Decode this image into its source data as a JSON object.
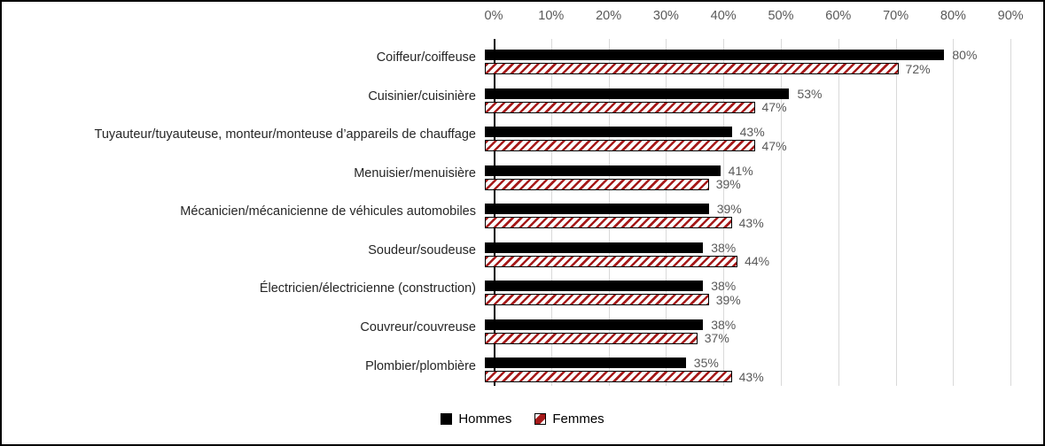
{
  "chart_data": {
    "type": "bar",
    "orientation": "horizontal",
    "categories": [
      "Coiffeur/coiffeuse",
      "Cuisinier/cuisinière",
      "Tuyauteur/tuyauteuse, monteur/monteuse d’appareils de chauffage",
      "Menuisier/menuisière",
      "Mécanicien/mécanicienne de véhicules automobiles",
      "Soudeur/soudeuse",
      "Électricien/électricienne (construction)",
      "Couvreur/couvreuse",
      "Plombier/plombière"
    ],
    "series": [
      {
        "name": "Hommes",
        "values": [
          80,
          53,
          43,
          41,
          39,
          38,
          38,
          38,
          35
        ]
      },
      {
        "name": "Femmes",
        "values": [
          72,
          47,
          47,
          39,
          43,
          44,
          39,
          37,
          43
        ]
      }
    ],
    "data_label_suffix": "%",
    "value_axis": {
      "position": "top",
      "min": 0,
      "max": 90,
      "tick_step": 10,
      "ticks": [
        "0%",
        "10%",
        "20%",
        "30%",
        "40%",
        "50%",
        "60%",
        "70%",
        "80%",
        "90%"
      ],
      "gridlines": true
    },
    "legend": {
      "position": "bottom",
      "entries": [
        "Hommes",
        "Femmes"
      ]
    },
    "colors": {
      "hommes_fill": "#000000",
      "femmes_stripe": "#A51919",
      "femmes_background": "#FFFFFF",
      "femmes_border": "#000000",
      "gridline": "#D9D9D9",
      "axis_line": "#000000",
      "tick_label": "#595959",
      "data_label": "#595959",
      "category_label": "#262626",
      "frame_border": "#000000"
    }
  }
}
